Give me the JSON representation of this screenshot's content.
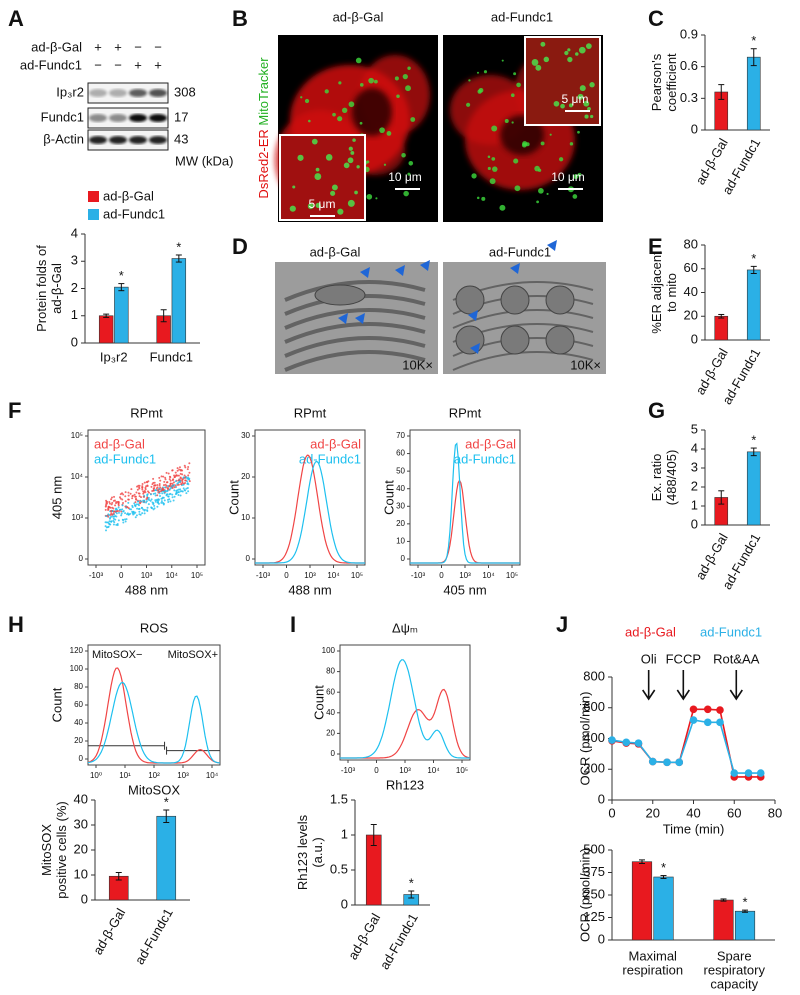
{
  "chart_data": [
    {
      "type": "bar",
      "y_label": [
        "Protein folds of",
        "ad-β-Gal"
      ],
      "categories": [
        "Ip₃r2",
        "Fundc1"
      ],
      "series": [
        {
          "name": "ad-β-Gal",
          "color": "#e8191f",
          "values": [
            1,
            1
          ],
          "errors": [
            0.06,
            0.22
          ]
        },
        {
          "name": "ad-Fundc1",
          "color": "#2bb0e6",
          "values": [
            2.05,
            3.1
          ],
          "errors": [
            0.13,
            0.13
          ],
          "annotations": [
            {
              "label": "*",
              "index": 0
            },
            {
              "label": "*",
              "index": 1
            }
          ]
        }
      ],
      "ylim": [
        0,
        4
      ],
      "yticks": [
        0,
        1,
        2,
        3,
        4
      ]
    },
    {
      "type": "bar",
      "y_label": [
        "Pearson's",
        "coefficient"
      ],
      "categories": [
        "ad-β-Gal",
        "ad-Fundc1"
      ],
      "values": [
        0.36,
        0.69
      ],
      "errors": [
        0.07,
        0.08
      ],
      "colors": [
        "#e8191f",
        "#2bb0e6"
      ],
      "annotations": [
        {
          "label": "*",
          "index": 1
        }
      ],
      "ylim": [
        0,
        0.9
      ],
      "yticks": [
        0,
        0.3,
        0.6,
        0.9
      ]
    },
    {
      "type": "bar",
      "y_label": [
        "%ER adjacent",
        "to mito"
      ],
      "categories": [
        "ad-β-Gal",
        "ad-Fundc1"
      ],
      "values": [
        20,
        59
      ],
      "errors": [
        1.5,
        3
      ],
      "colors": [
        "#e8191f",
        "#2bb0e6"
      ],
      "annotations": [
        {
          "label": "*",
          "index": 1
        }
      ],
      "ylim": [
        0,
        80
      ],
      "yticks": [
        0,
        20,
        40,
        60,
        80
      ]
    },
    {
      "type": "bar",
      "y_label": [
        "Ex. ratio",
        "(488/405)"
      ],
      "categories": [
        "ad-β-Gal",
        "ad-Fundc1"
      ],
      "values": [
        1.45,
        3.85
      ],
      "errors": [
        0.35,
        0.2
      ],
      "colors": [
        "#e8191f",
        "#2bb0e6"
      ],
      "annotations": [
        {
          "label": "*",
          "index": 1
        }
      ],
      "ylim": [
        0,
        5
      ],
      "yticks": [
        0,
        1,
        2,
        3,
        4,
        5
      ]
    },
    {
      "type": "bar",
      "y_label": [
        "MitoSOX",
        "positive cells (%)"
      ],
      "categories": [
        "ad-β-Gal",
        "ad-Fundc1"
      ],
      "values": [
        9.5,
        33.5
      ],
      "errors": [
        1.5,
        2.5
      ],
      "colors": [
        "#e8191f",
        "#2bb0e6"
      ],
      "annotations": [
        {
          "label": "*",
          "index": 1
        }
      ],
      "ylim": [
        0,
        40
      ],
      "yticks": [
        0,
        10,
        20,
        30,
        40
      ]
    },
    {
      "type": "bar",
      "y_label": [
        "Rh123 levels",
        "(a.u.)"
      ],
      "categories": [
        "ad-β-Gal",
        "ad-Fundc1"
      ],
      "values": [
        1.0,
        0.15
      ],
      "errors": [
        0.15,
        0.05
      ],
      "colors": [
        "#e8191f",
        "#2bb0e6"
      ],
      "annotations": [
        {
          "label": "*",
          "index": 1
        }
      ],
      "ylim": [
        0,
        1.5
      ],
      "yticks": [
        0,
        0.5,
        1,
        1.5
      ]
    },
    {
      "type": "line",
      "x_label": "Time (min)",
      "y_label": [
        "OCR (pmol/min)"
      ],
      "x": [
        0,
        7,
        13,
        20,
        27,
        33,
        40,
        47,
        53,
        60,
        67,
        73
      ],
      "series": [
        {
          "name": "ad-β-Gal",
          "color": "#e8191f",
          "values": [
            385,
            370,
            365,
            250,
            245,
            245,
            590,
            590,
            585,
            150,
            150,
            150
          ]
        },
        {
          "name": "ad-Fundc1",
          "color": "#2bb0e6",
          "values": [
            390,
            375,
            370,
            250,
            245,
            245,
            520,
            505,
            505,
            175,
            175,
            175
          ]
        }
      ],
      "xlim": [
        0,
        80
      ],
      "xticks": [
        0,
        20,
        40,
        60,
        80
      ],
      "ylim": [
        0,
        800
      ],
      "yticks": [
        0,
        200,
        400,
        600,
        800
      ],
      "annotations": [
        {
          "label": "Oli",
          "x": 18
        },
        {
          "label": "FCCP",
          "x": 35
        },
        {
          "label": "Rot&AA",
          "x": 61
        }
      ]
    },
    {
      "type": "bar",
      "y_label": [
        "OCR (pmol/min)"
      ],
      "categories": [
        [
          "Maximal",
          "respiration"
        ],
        [
          "Spare",
          "respiratory",
          "capacity"
        ]
      ],
      "series": [
        {
          "name": "ad-β-Gal",
          "color": "#e8191f",
          "values": [
            435,
            222
          ],
          "errors": [
            10,
            6
          ]
        },
        {
          "name": "ad-Fundc1",
          "color": "#2bb0e6",
          "values": [
            350,
            160
          ],
          "errors": [
            8,
            6
          ],
          "annotations": [
            {
              "label": "*",
              "index": 0
            },
            {
              "label": "*",
              "index": 1
            }
          ]
        }
      ],
      "ylim": [
        0,
        500
      ],
      "yticks": [
        0,
        125,
        250,
        375,
        500
      ]
    }
  ],
  "figure": {
    "letters": [
      "A",
      "B",
      "C",
      "D",
      "E",
      "F",
      "G",
      "H",
      "I",
      "J"
    ],
    "blot": {
      "conditions": [
        {
          "name": "ad-β-Gal",
          "signs": [
            "+",
            "+",
            "−",
            "−"
          ]
        },
        {
          "name": "ad-Fundc1",
          "signs": [
            "−",
            "−",
            "+",
            "+"
          ]
        }
      ],
      "rows": [
        {
          "protein": "Ip₃r2",
          "mw": 308
        },
        {
          "protein": "Fundc1",
          "mw": 17
        },
        {
          "protein": "β-Actin",
          "mw": 43
        }
      ],
      "mw_label": "MW (kDa)"
    },
    "confocal": {
      "columns": [
        "ad-β-Gal",
        "ad-Fundc1"
      ],
      "stain_labels": [
        "DsRed2-ER",
        "MitoTracker"
      ],
      "scale_bars": [
        "5 μm",
        "10 μm",
        "10 μm",
        "5 μm"
      ]
    },
    "em": {
      "columns": [
        "ad-β-Gal",
        "ad-Fundc1"
      ],
      "magnification": [
        "10K×",
        "10K×"
      ]
    },
    "flow_colors": [
      "#f04545",
      "#1ec0ef"
    ],
    "flow": [
      {
        "title": "RPmt",
        "y_label": "405 nm",
        "x_label": "488 nm",
        "legend": [
          "ad-β-Gal",
          "ad-Fundc1"
        ],
        "xticks": [
          "-10³",
          0,
          "10³",
          "10⁴",
          "10⁵"
        ],
        "yticks": [
          0,
          "10³",
          "10⁴",
          "10⁵"
        ]
      },
      {
        "title": "RPmt",
        "y_label": "Count",
        "x_label": "488 nm",
        "legend": [
          "ad-β-Gal",
          "ad-Fundc1"
        ],
        "xticks": [
          "-10³",
          0,
          "10³",
          "10⁴",
          "10⁵"
        ],
        "yticks": [
          0,
          10,
          20,
          30
        ]
      },
      {
        "title": "RPmt",
        "y_label": "Count",
        "x_label": "405 nm",
        "legend": [
          "ad-β-Gal",
          "ad-Fundc1"
        ],
        "xticks": [
          "-10³",
          0,
          "10³",
          "10⁴",
          "10⁵"
        ],
        "yticks": [
          0,
          10,
          20,
          30,
          40,
          50,
          60,
          70
        ]
      },
      {
        "title": "ROS",
        "y_label": "Count",
        "x_label": "MitoSOX",
        "gates": [
          "MitoSOX−",
          "MitoSOX+"
        ],
        "xticks": [
          "10⁰",
          "10¹",
          "10²",
          "10³",
          "10⁴"
        ],
        "yticks": [
          0,
          20,
          40,
          60,
          80,
          100,
          120
        ]
      },
      {
        "title": "Δψₘ",
        "y_label": "Count",
        "x_label": "Rh123",
        "xticks": [
          "-10³",
          0,
          "10³",
          "10⁴",
          "10⁵"
        ],
        "yticks": [
          0,
          20,
          40,
          60,
          80,
          100
        ]
      }
    ]
  }
}
